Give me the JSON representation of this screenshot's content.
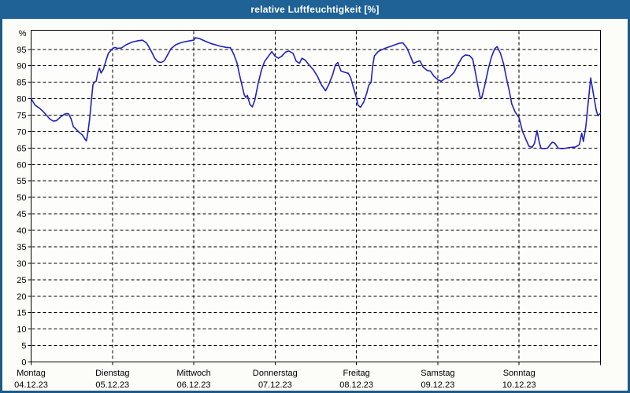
{
  "window": {
    "title": "relative Luftfeuchtigkeit [%]"
  },
  "colors": {
    "window_border": "#1c5a88",
    "titlebar_bg": "#1e6296",
    "titlebar_text": "#ffffff",
    "content_bg": "#fcfdf8",
    "plot_bg": "#fdfefb",
    "axis": "#000000",
    "grid": "#000000",
    "line": "#2121bf"
  },
  "chart_data": {
    "type": "line",
    "title": "relative Luftfeuchtigkeit [%]",
    "ylabel": "%",
    "y_unit": "%",
    "ylim": [
      0,
      100.8
    ],
    "y_ticks": [
      0,
      5,
      10,
      15,
      20,
      25,
      30,
      35,
      40,
      45,
      50,
      55,
      60,
      65,
      70,
      75,
      80,
      85,
      90,
      95
    ],
    "grid": "dashed",
    "legend_position": "none",
    "x_range_days": [
      0,
      7
    ],
    "x_axis_days": [
      {
        "name": "Montag",
        "date": "04.12.23"
      },
      {
        "name": "Dienstag",
        "date": "05.12.23"
      },
      {
        "name": "Mittwoch",
        "date": "06.12.23"
      },
      {
        "name": "Donnerstag",
        "date": "07.12.23"
      },
      {
        "name": "Freitag",
        "date": "08.12.23"
      },
      {
        "name": "Samstag",
        "date": "09.12.23"
      },
      {
        "name": "Sonntag",
        "date": "10.12.23"
      }
    ],
    "series": [
      {
        "name": "relative Luftfeuchtigkeit [%]",
        "color": "#2121bf",
        "points_day_value": [
          [
            0.0,
            80
          ],
          [
            0.05,
            78
          ],
          [
            0.1,
            77.2
          ],
          [
            0.14,
            76.3
          ],
          [
            0.19,
            75
          ],
          [
            0.23,
            73.8
          ],
          [
            0.27,
            73.2
          ],
          [
            0.31,
            73.3
          ],
          [
            0.36,
            74.4
          ],
          [
            0.41,
            75.3
          ],
          [
            0.44,
            75.5
          ],
          [
            0.46,
            75.4
          ],
          [
            0.49,
            74
          ],
          [
            0.52,
            71.5
          ],
          [
            0.55,
            70.8
          ],
          [
            0.59,
            69.8
          ],
          [
            0.63,
            69
          ],
          [
            0.66,
            67.8
          ],
          [
            0.68,
            67.2
          ],
          [
            0.7,
            70
          ],
          [
            0.72,
            74
          ],
          [
            0.74,
            79
          ],
          [
            0.76,
            84.2
          ],
          [
            0.78,
            85.1
          ],
          [
            0.8,
            85.3
          ],
          [
            0.82,
            88
          ],
          [
            0.84,
            89.3
          ],
          [
            0.86,
            87.8
          ],
          [
            0.89,
            89
          ],
          [
            0.92,
            91.5
          ],
          [
            0.95,
            93.8
          ],
          [
            1.0,
            95.2
          ],
          [
            1.03,
            95.6
          ],
          [
            1.06,
            95.3
          ],
          [
            1.11,
            95.4
          ],
          [
            1.17,
            96.4
          ],
          [
            1.24,
            97.2
          ],
          [
            1.31,
            97.6
          ],
          [
            1.37,
            97.8
          ],
          [
            1.42,
            96.9
          ],
          [
            1.47,
            94.8
          ],
          [
            1.52,
            92.3
          ],
          [
            1.56,
            91.2
          ],
          [
            1.6,
            91.0
          ],
          [
            1.64,
            91.6
          ],
          [
            1.68,
            93.4
          ],
          [
            1.72,
            95.2
          ],
          [
            1.78,
            96.4
          ],
          [
            1.85,
            97.1
          ],
          [
            1.93,
            97.5
          ],
          [
            2.0,
            97.8
          ],
          [
            2.02,
            98.5
          ],
          [
            2.07,
            98.3
          ],
          [
            2.12,
            97.7
          ],
          [
            2.22,
            96.7
          ],
          [
            2.32,
            96.0
          ],
          [
            2.4,
            95.6
          ],
          [
            2.45,
            95.5
          ],
          [
            2.49,
            93.6
          ],
          [
            2.53,
            91.0
          ],
          [
            2.57,
            86.5
          ],
          [
            2.62,
            81.2
          ],
          [
            2.64,
            80.4
          ],
          [
            2.66,
            81.0
          ],
          [
            2.69,
            78.3
          ],
          [
            2.72,
            77.5
          ],
          [
            2.75,
            79.5
          ],
          [
            2.79,
            84.5
          ],
          [
            2.83,
            88.5
          ],
          [
            2.87,
            91.3
          ],
          [
            2.92,
            93.0
          ],
          [
            2.96,
            94.3
          ],
          [
            3.0,
            92.9
          ],
          [
            3.04,
            92.3
          ],
          [
            3.08,
            92.9
          ],
          [
            3.13,
            94.2
          ],
          [
            3.17,
            94.5
          ],
          [
            3.22,
            93.8
          ],
          [
            3.26,
            91.4
          ],
          [
            3.3,
            90.8
          ],
          [
            3.33,
            92.3
          ],
          [
            3.37,
            91.7
          ],
          [
            3.42,
            90.2
          ],
          [
            3.47,
            88.8
          ],
          [
            3.52,
            86.8
          ],
          [
            3.57,
            84.2
          ],
          [
            3.62,
            82.4
          ],
          [
            3.66,
            84.3
          ],
          [
            3.71,
            87.5
          ],
          [
            3.74,
            90.2
          ],
          [
            3.77,
            91.0
          ],
          [
            3.81,
            88.4
          ],
          [
            3.86,
            88.0
          ],
          [
            3.9,
            87.7
          ],
          [
            3.93,
            86.3
          ],
          [
            3.96,
            83.6
          ],
          [
            4.0,
            80.3
          ],
          [
            4.02,
            78.0
          ],
          [
            4.05,
            77.4
          ],
          [
            4.09,
            79.0
          ],
          [
            4.13,
            82.0
          ],
          [
            4.15,
            84.0
          ],
          [
            4.18,
            85.0
          ],
          [
            4.2,
            90.0
          ],
          [
            4.22,
            93.0
          ],
          [
            4.27,
            94.4
          ],
          [
            4.35,
            95.3
          ],
          [
            4.44,
            96.1
          ],
          [
            4.52,
            96.8
          ],
          [
            4.57,
            97.0
          ],
          [
            4.62,
            95.4
          ],
          [
            4.65,
            93.7
          ],
          [
            4.7,
            90.7
          ],
          [
            4.74,
            91.2
          ],
          [
            4.78,
            91.5
          ],
          [
            4.82,
            89.6
          ],
          [
            4.87,
            88.6
          ],
          [
            4.91,
            88.4
          ],
          [
            4.95,
            86.9
          ],
          [
            5.0,
            85.8
          ],
          [
            5.04,
            85.3
          ],
          [
            5.09,
            86.1
          ],
          [
            5.14,
            86.5
          ],
          [
            5.2,
            88.0
          ],
          [
            5.25,
            90.5
          ],
          [
            5.3,
            92.6
          ],
          [
            5.34,
            93.3
          ],
          [
            5.39,
            93.1
          ],
          [
            5.43,
            92.0
          ],
          [
            5.46,
            88.3
          ],
          [
            5.49,
            84.3
          ],
          [
            5.52,
            80.6
          ],
          [
            5.54,
            80.2
          ],
          [
            5.58,
            84.3
          ],
          [
            5.62,
            89.0
          ],
          [
            5.66,
            92.7
          ],
          [
            5.7,
            95.2
          ],
          [
            5.73,
            95.8
          ],
          [
            5.77,
            93.8
          ],
          [
            5.81,
            90.5
          ],
          [
            5.84,
            86.7
          ],
          [
            5.88,
            82.3
          ],
          [
            5.91,
            78.4
          ],
          [
            5.95,
            76.0
          ],
          [
            6.0,
            74.2
          ],
          [
            6.04,
            70.2
          ],
          [
            6.08,
            67.8
          ],
          [
            6.12,
            65.6
          ],
          [
            6.16,
            65.2
          ],
          [
            6.19,
            66.5
          ],
          [
            6.22,
            70.3
          ],
          [
            6.25,
            66.5
          ],
          [
            6.27,
            64.9
          ],
          [
            6.31,
            64.8
          ],
          [
            6.35,
            65.0
          ],
          [
            6.39,
            66.3
          ],
          [
            6.41,
            66.8
          ],
          [
            6.44,
            66.4
          ],
          [
            6.48,
            65.0
          ],
          [
            6.53,
            64.8
          ],
          [
            6.58,
            65.0
          ],
          [
            6.63,
            65.2
          ],
          [
            6.69,
            65.3
          ],
          [
            6.74,
            66.0
          ],
          [
            6.77,
            69.5
          ],
          [
            6.79,
            67.0
          ],
          [
            6.82,
            71.5
          ],
          [
            6.85,
            79.0
          ],
          [
            6.88,
            86.3
          ],
          [
            6.92,
            80.5
          ],
          [
            6.95,
            76.3
          ],
          [
            6.97,
            74.8
          ],
          [
            7.0,
            75.6
          ]
        ]
      }
    ]
  }
}
